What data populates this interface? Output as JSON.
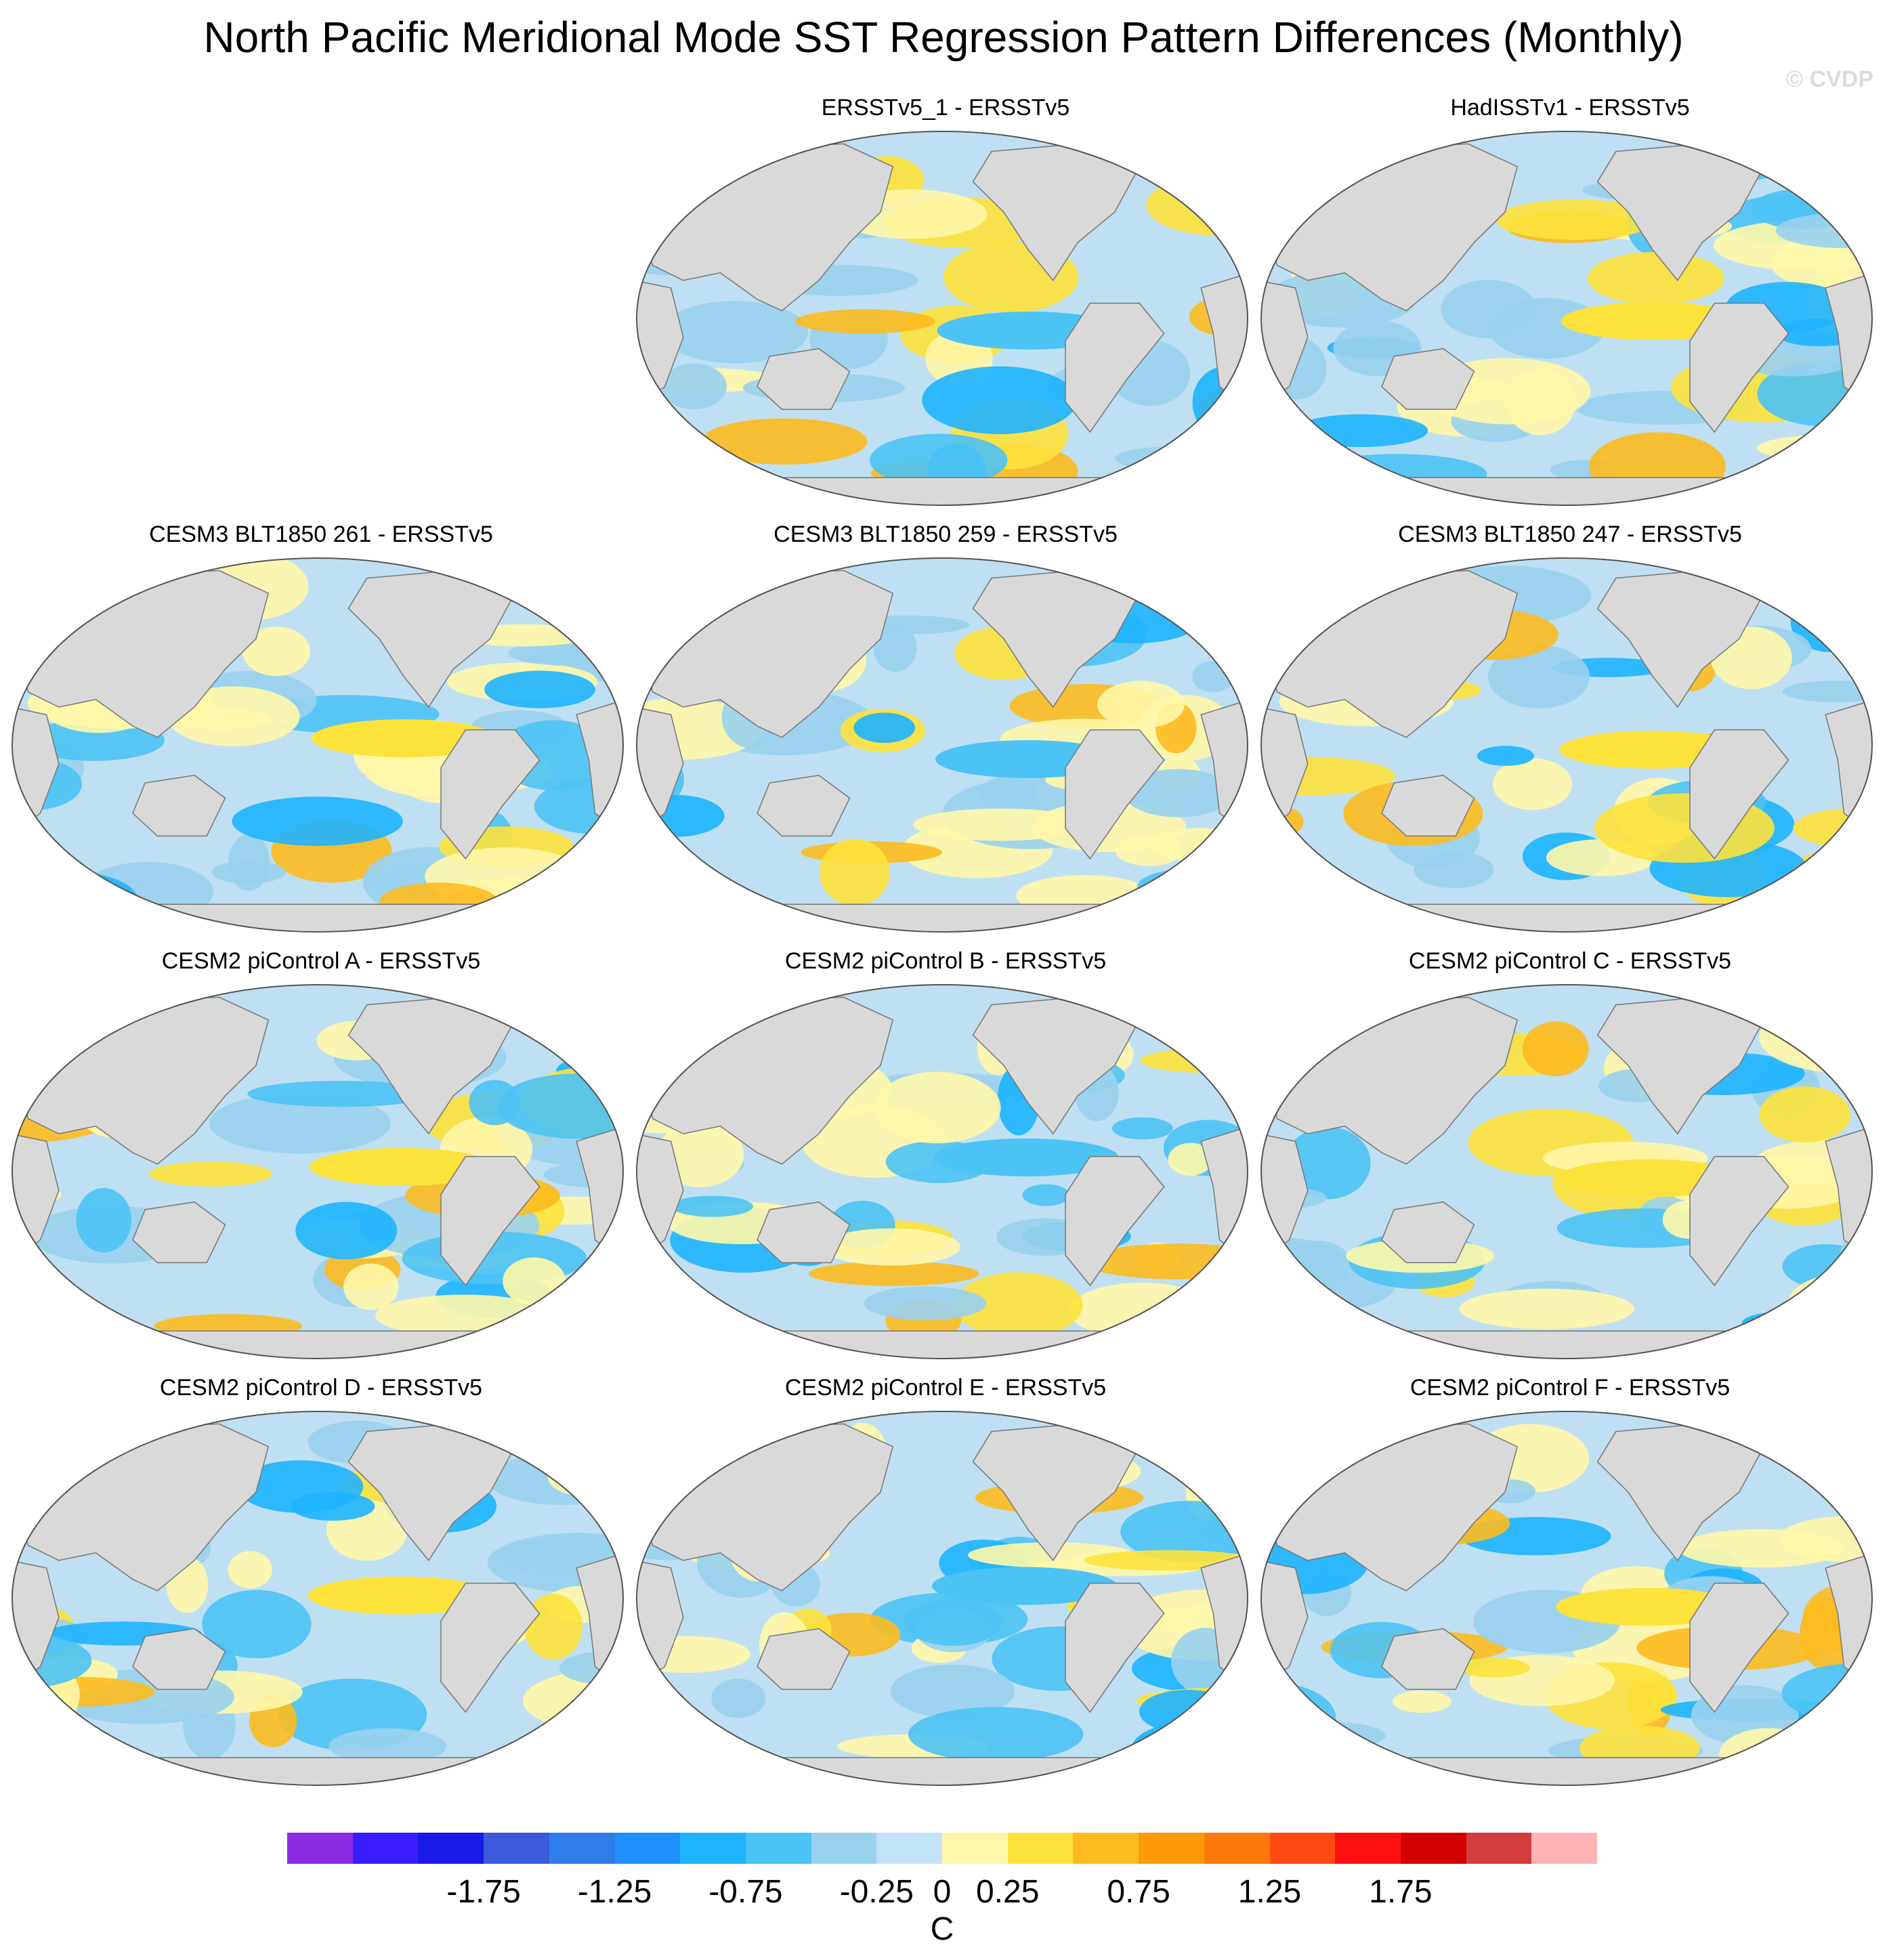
{
  "title": "North Pacific Meridional Mode SST Regression Pattern Differences (Monthly)",
  "watermark": "© CVDP",
  "colors": {
    "land": "#d9d9d9",
    "ocean_bg": "#bfe0f2",
    "outline": "#777777",
    "scale": [
      "#8a2be2",
      "#3a1cff",
      "#1a1ae6",
      "#3b5bdb",
      "#2f7de8",
      "#1e90ff",
      "#1eb4ff",
      "#4cc3f5",
      "#99d2ee",
      "#c2e3f5",
      "#fff7a8",
      "#fde23c",
      "#fdbb1f",
      "#fd9a0a",
      "#fd7a0a",
      "#ff4a14",
      "#ff1010",
      "#d40000",
      "#d43d3d",
      "#ffb3b3"
    ]
  },
  "chart_data": {
    "type": "map-panel-grid",
    "projection": "Robinson (global, Pacific-centred)",
    "variable": "SST regression pattern difference",
    "panels": [
      {
        "id": "ersstv5_1",
        "title": "ERSSTv5_1 - ERSSTv5",
        "row": 0,
        "col": 1
      },
      {
        "id": "hadisstv1",
        "title": "HadISSTv1 - ERSSTv5",
        "row": 0,
        "col": 2
      },
      {
        "id": "blt261",
        "title": "CESM3 BLT1850 261 - ERSSTv5",
        "row": 1,
        "col": 0
      },
      {
        "id": "blt259",
        "title": "CESM3 BLT1850 259 - ERSSTv5",
        "row": 1,
        "col": 1
      },
      {
        "id": "blt247",
        "title": "CESM3 BLT1850 247 - ERSSTv5",
        "row": 1,
        "col": 2
      },
      {
        "id": "picontrol_a",
        "title": "CESM2 piControl A - ERSSTv5",
        "row": 2,
        "col": 0
      },
      {
        "id": "picontrol_b",
        "title": "CESM2 piControl B - ERSSTv5",
        "row": 2,
        "col": 1
      },
      {
        "id": "picontrol_c",
        "title": "CESM2 piControl C - ERSSTv5",
        "row": 2,
        "col": 2
      },
      {
        "id": "picontrol_d",
        "title": "CESM2 piControl D - ERSSTv5",
        "row": 3,
        "col": 0
      },
      {
        "id": "picontrol_e",
        "title": "CESM2 piControl E - ERSSTv5",
        "row": 3,
        "col": 1
      },
      {
        "id": "picontrol_f",
        "title": "CESM2 piControl F - ERSSTv5",
        "row": 3,
        "col": 2
      }
    ],
    "colorbar": {
      "levels": [
        -2.25,
        -2.0,
        -1.75,
        -1.5,
        -1.25,
        -1.0,
        -0.75,
        -0.5,
        -0.25,
        0,
        0.25,
        0.5,
        0.75,
        1.0,
        1.25,
        1.5,
        1.75,
        2.0,
        2.25
      ],
      "tick_labels": [
        "-1.75",
        "-1.25",
        "-0.75",
        "-0.25",
        "0",
        "0.25",
        "0.75",
        "1.25",
        "1.75"
      ],
      "tick_values": [
        -1.75,
        -1.25,
        -0.75,
        -0.25,
        0,
        0.25,
        0.75,
        1.25,
        1.75
      ],
      "units": "C"
    }
  }
}
